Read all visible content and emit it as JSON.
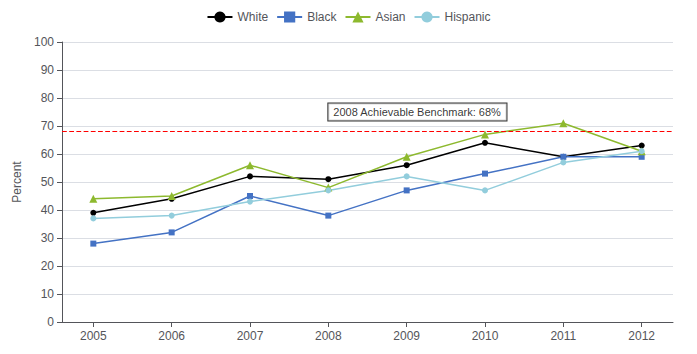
{
  "chart_data": {
    "type": "line",
    "x": [
      2005,
      2006,
      2007,
      2008,
      2009,
      2010,
      2011,
      2012
    ],
    "series": [
      {
        "name": "White",
        "color": "#000000",
        "marker": "circle",
        "values": [
          39,
          44,
          52,
          51,
          56,
          64,
          59,
          63
        ]
      },
      {
        "name": "Black",
        "color": "#4472C4",
        "marker": "square",
        "values": [
          28,
          32,
          45,
          38,
          47,
          53,
          59,
          59
        ]
      },
      {
        "name": "Asian",
        "color": "#8DB92E",
        "marker": "triangle",
        "values": [
          44,
          45,
          56,
          48,
          59,
          67,
          71,
          61
        ]
      },
      {
        "name": "Hispanic",
        "color": "#92CDDC",
        "marker": "circle",
        "values": [
          37,
          38,
          43,
          47,
          52,
          47,
          57,
          61
        ]
      }
    ],
    "reference_lines": [
      {
        "y": 68,
        "color": "#FF0000",
        "line_style": "dashed"
      }
    ],
    "annotations": [
      {
        "text": "2008 Achievable Benchmark: 68%",
        "x": 2008,
        "y": 75
      }
    ],
    "ylabel": "Percent",
    "xlim": [
      2004.6,
      2012.4
    ],
    "xticks": [
      2005,
      2006,
      2007,
      2008,
      2009,
      2010,
      2011,
      2012
    ],
    "ylim": [
      0,
      100
    ],
    "yticks": [
      0,
      10,
      20,
      30,
      40,
      50,
      60,
      70,
      80,
      90,
      100
    ],
    "grid": true,
    "legend": "top"
  }
}
